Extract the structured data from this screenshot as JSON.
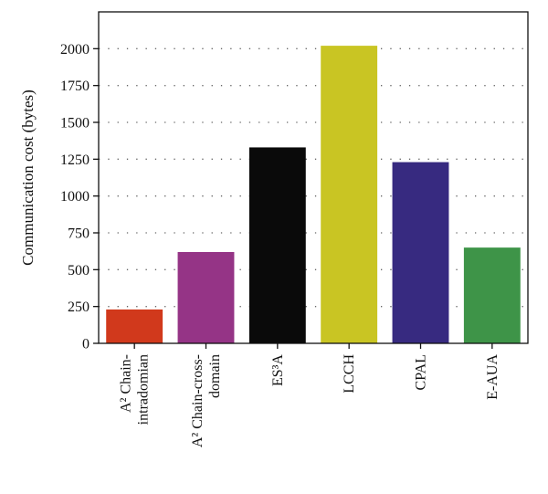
{
  "chart_data": {
    "type": "bar",
    "title": "",
    "xlabel": "",
    "ylabel": "Communication cost (bytes)",
    "ylim": [
      0,
      2250
    ],
    "yticks": [
      0,
      250,
      500,
      750,
      1000,
      1250,
      1500,
      1750,
      2000
    ],
    "grid": "dotted horizontal",
    "categories": [
      [
        "A² Chain-",
        "intradomian"
      ],
      [
        "A² Chain-cross-",
        "domain"
      ],
      [
        "ES³A"
      ],
      [
        "LCCH"
      ],
      [
        "CPAL"
      ],
      [
        "E-AUA"
      ]
    ],
    "values": [
      230,
      620,
      1330,
      2020,
      1230,
      650
    ],
    "colors": [
      "#d1391c",
      "#953486",
      "#0a0a0a",
      "#c9c523",
      "#372a80",
      "#3e9448"
    ]
  }
}
